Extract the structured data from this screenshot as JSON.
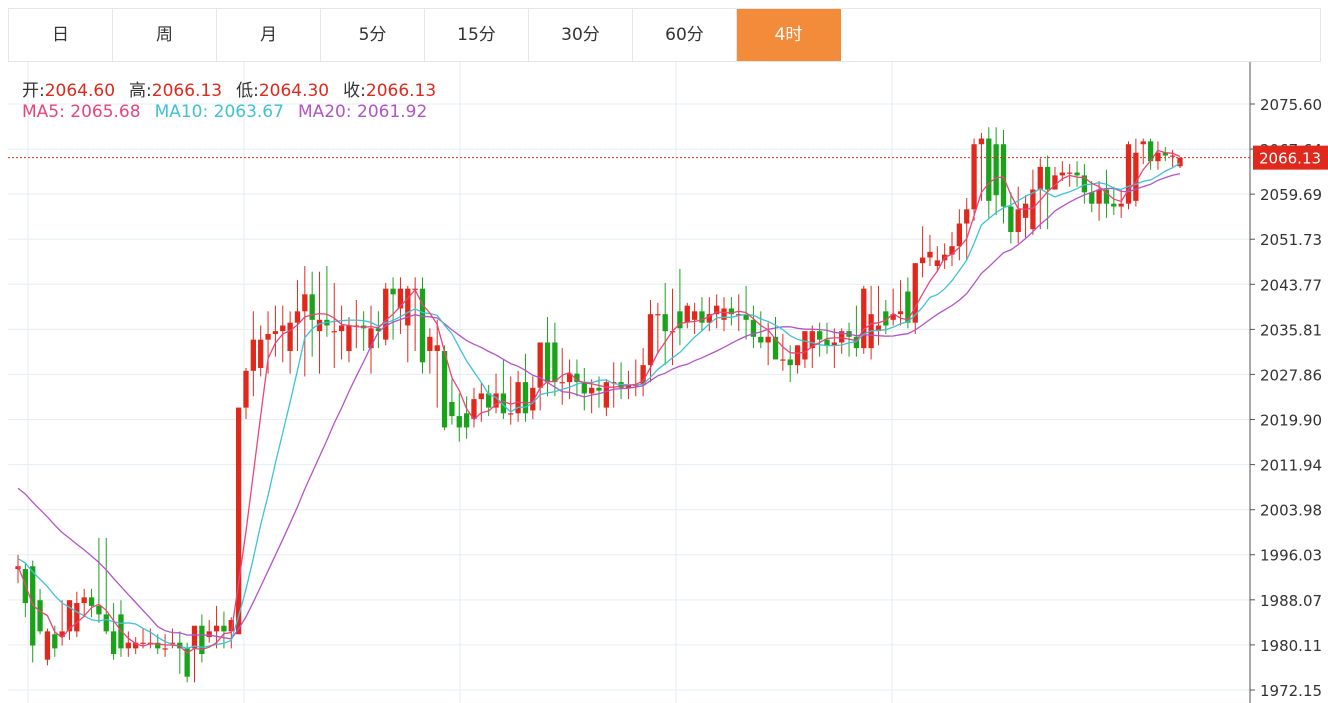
{
  "tabs": [
    {
      "label": "日",
      "active": false
    },
    {
      "label": "周",
      "active": false
    },
    {
      "label": "月",
      "active": false
    },
    {
      "label": "5分",
      "active": false
    },
    {
      "label": "15分",
      "active": false
    },
    {
      "label": "30分",
      "active": false
    },
    {
      "label": "60分",
      "active": false
    },
    {
      "label": "4时",
      "active": true
    }
  ],
  "ohlc_info": {
    "open_label": "开:",
    "open": "2064.60",
    "high_label": "高:",
    "high": "2066.13",
    "low_label": "低:",
    "low": "2064.30",
    "close_label": "收:",
    "close": "2066.13"
  },
  "ma_info": {
    "ma5_label": "MA5:",
    "ma5": "2065.68",
    "ma10_label": "MA10:",
    "ma10": "2063.67",
    "ma20_label": "MA20:",
    "ma20": "2061.92"
  },
  "colors": {
    "up": "#e0291c",
    "down": "#1aa31a",
    "ma5": "#e8457c",
    "ma10": "#3ec2d6",
    "ma20": "#b453c8",
    "active_tab": "#f28c3a",
    "grid": "#e3edf3"
  },
  "chart_data": {
    "type": "candlestick",
    "yticks": [
      "2075.60",
      "2067.64",
      "2059.69",
      "2051.73",
      "2043.77",
      "2035.81",
      "2027.86",
      "2019.90",
      "2011.94",
      "2003.98",
      "1996.03",
      "1988.07",
      "1980.11",
      "1972.15"
    ],
    "ylim": [
      1971,
      2081
    ],
    "last_price": "2066.13",
    "candles": [
      [
        1993.5,
        1996.0,
        1991.0,
        1994.0
      ],
      [
        1993.5,
        1994.5,
        1985.0,
        1987.5
      ],
      [
        1994.0,
        1995.0,
        1977.0,
        1980.0
      ],
      [
        1988.0,
        1990.0,
        1982.0,
        1982.5
      ],
      [
        1977.5,
        1983.0,
        1976.5,
        1982.5
      ],
      [
        1982.0,
        1983.5,
        1978.0,
        1979.5
      ],
      [
        1981.5,
        1988.0,
        1980.0,
        1982.5
      ],
      [
        1982.5,
        1988.0,
        1981.0,
        1988.0
      ],
      [
        1982.5,
        1989.5,
        1981.5,
        1987.5
      ],
      [
        1987.5,
        1990.0,
        1985.0,
        1988.5
      ],
      [
        1988.5,
        1990.0,
        1985.0,
        1987.0
      ],
      [
        1987.0,
        1999.0,
        1984.0,
        1985.5
      ],
      [
        1985.5,
        1999.0,
        1982.0,
        1982.5
      ],
      [
        1982.5,
        1987.5,
        1977.5,
        1978.5
      ],
      [
        1985.5,
        1988.0,
        1978.0,
        1979.5
      ],
      [
        1979.5,
        1982.5,
        1978.0,
        1980.5
      ],
      [
        1979.5,
        1981.5,
        1978.5,
        1980.5
      ],
      [
        1980.5,
        1983.0,
        1979.5,
        1980.5
      ],
      [
        1980.5,
        1983.0,
        1979.5,
        1980.5
      ],
      [
        1980.5,
        1982.0,
        1978.5,
        1979.5
      ],
      [
        1979.5,
        1982.0,
        1978.0,
        1979.5
      ],
      [
        1980.5,
        1983.0,
        1979.5,
        1980.5
      ],
      [
        1980.5,
        1982.5,
        1975.0,
        1979.5
      ],
      [
        1979.5,
        1980.5,
        1973.5,
        1974.5
      ],
      [
        1979.5,
        1982.5,
        1973.5,
        1983.5
      ],
      [
        1983.5,
        1985.5,
        1977.0,
        1978.5
      ],
      [
        1981.5,
        1984.5,
        1980.5,
        1982.5
      ],
      [
        1982.5,
        1987.0,
        1979.5,
        1983.5
      ],
      [
        1983.5,
        1986.0,
        1979.5,
        1982.5
      ],
      [
        1982.5,
        1985.0,
        1979.5,
        1984.5
      ],
      [
        1982.0,
        2022.0,
        1982.0,
        2022.0
      ],
      [
        2022.0,
        2029.0,
        2020.0,
        2028.5
      ],
      [
        2028.5,
        2039.0,
        2024.0,
        2034.0
      ],
      [
        2029.0,
        2036.5,
        2027.5,
        2034.0
      ],
      [
        2034.0,
        2039.0,
        2028.0,
        2035.0
      ],
      [
        2035.0,
        2040.0,
        2031.0,
        2035.5
      ],
      [
        2035.5,
        2040.0,
        2030.0,
        2036.5
      ],
      [
        2032.0,
        2039.0,
        2028.0,
        2037.0
      ],
      [
        2037.0,
        2044.5,
        2032.0,
        2039.0
      ],
      [
        2039.0,
        2047.0,
        2027.5,
        2042.0
      ],
      [
        2042.0,
        2046.0,
        2031.0,
        2037.5
      ],
      [
        2035.5,
        2046.0,
        2028.0,
        2037.5
      ],
      [
        2037.5,
        2047.0,
        2034.5,
        2036.5
      ],
      [
        2035.5,
        2044.0,
        2029.0,
        2035.5
      ],
      [
        2035.5,
        2040.0,
        2030.5,
        2036.5
      ],
      [
        2032.0,
        2038.0,
        2030.0,
        2036.5
      ],
      [
        2036.5,
        2041.0,
        2032.5,
        2036.5
      ],
      [
        2036.5,
        2039.0,
        2032.0,
        2036.0
      ],
      [
        2032.5,
        2040.0,
        2028.0,
        2036.0
      ],
      [
        2036.0,
        2039.0,
        2032.5,
        2035.5
      ],
      [
        2034.0,
        2044.0,
        2033.0,
        2043.0
      ],
      [
        2043.0,
        2045.0,
        2034.0,
        2042.0
      ],
      [
        2039.5,
        2045.0,
        2035.0,
        2043.0
      ],
      [
        2036.5,
        2043.5,
        2030.0,
        2043.0
      ],
      [
        2043.0,
        2045.0,
        2032.0,
        2043.0
      ],
      [
        2043.0,
        2045.0,
        2028.0,
        2030.0
      ],
      [
        2032.0,
        2036.0,
        2028.0,
        2034.5
      ],
      [
        2032.0,
        2037.5,
        2022.0,
        2033.0
      ],
      [
        2032.0,
        2033.0,
        2018.0,
        2018.5
      ],
      [
        2023.0,
        2027.0,
        2019.0,
        2020.5
      ],
      [
        2020.5,
        2024.5,
        2016.0,
        2018.5
      ],
      [
        2021.0,
        2024.0,
        2016.5,
        2018.5
      ],
      [
        2020.0,
        2025.5,
        2018.5,
        2023.5
      ],
      [
        2023.5,
        2026.5,
        2019.5,
        2024.5
      ],
      [
        2024.5,
        2026.0,
        2020.5,
        2022.0
      ],
      [
        2022.0,
        2028.0,
        2021.0,
        2024.5
      ],
      [
        2024.5,
        2030.5,
        2020.0,
        2021.0
      ],
      [
        2021.0,
        2027.5,
        2019.0,
        2021.0
      ],
      [
        2021.0,
        2028.5,
        2019.5,
        2026.5
      ],
      [
        2026.5,
        2031.5,
        2019.5,
        2021.0
      ],
      [
        2021.5,
        2027.5,
        2020.0,
        2025.5
      ],
      [
        2025.5,
        2033.0,
        2021.5,
        2033.5
      ],
      [
        2033.5,
        2038.0,
        2024.0,
        2026.5
      ],
      [
        2033.5,
        2037.0,
        2024.0,
        2026.5
      ],
      [
        2026.5,
        2032.5,
        2022.5,
        2026.5
      ],
      [
        2026.5,
        2030.5,
        2023.5,
        2028.0
      ],
      [
        2028.0,
        2030.5,
        2024.0,
        2026.5
      ],
      [
        2026.5,
        2029.0,
        2021.5,
        2024.5
      ],
      [
        2024.5,
        2027.0,
        2021.0,
        2025.5
      ],
      [
        2025.5,
        2027.5,
        2022.0,
        2025.0
      ],
      [
        2022.0,
        2027.0,
        2020.5,
        2026.5
      ],
      [
        2026.5,
        2030.0,
        2022.0,
        2026.5
      ],
      [
        2026.5,
        2030.0,
        2023.5,
        2025.5
      ],
      [
        2025.5,
        2028.5,
        2023.5,
        2026.0
      ],
      [
        2026.0,
        2030.5,
        2024.0,
        2026.0
      ],
      [
        2026.0,
        2032.5,
        2024.0,
        2029.5
      ],
      [
        2029.5,
        2041.0,
        2026.5,
        2038.5
      ],
      [
        2038.5,
        2040.5,
        2031.5,
        2038.5
      ],
      [
        2038.5,
        2044.0,
        2029.5,
        2035.5
      ],
      [
        2035.5,
        2043.0,
        2029.5,
        2035.5
      ],
      [
        2039.0,
        2046.5,
        2033.0,
        2036.0
      ],
      [
        2037.0,
        2040.5,
        2036.0,
        2040.0
      ],
      [
        2037.5,
        2040.5,
        2035.0,
        2039.0
      ],
      [
        2039.0,
        2041.5,
        2035.5,
        2037.0
      ],
      [
        2037.0,
        2041.5,
        2035.5,
        2038.5
      ],
      [
        2038.5,
        2042.0,
        2036.0,
        2040.0
      ],
      [
        2037.5,
        2041.5,
        2035.5,
        2039.5
      ],
      [
        2039.5,
        2041.5,
        2036.5,
        2038.5
      ],
      [
        2038.5,
        2042.0,
        2035.5,
        2038.5
      ],
      [
        2038.5,
        2043.5,
        2034.0,
        2037.5
      ],
      [
        2037.5,
        2040.0,
        2032.5,
        2034.5
      ],
      [
        2034.5,
        2039.0,
        2032.5,
        2033.5
      ],
      [
        2033.5,
        2037.0,
        2029.5,
        2034.5
      ],
      [
        2034.5,
        2038.0,
        2031.0,
        2030.5
      ],
      [
        2030.5,
        2035.0,
        2028.5,
        2030.5
      ],
      [
        2030.5,
        2033.0,
        2026.5,
        2029.5
      ],
      [
        2029.5,
        2033.0,
        2028.0,
        2033.0
      ],
      [
        2030.5,
        2035.5,
        2029.0,
        2035.5
      ],
      [
        2032.5,
        2036.5,
        2029.0,
        2035.5
      ],
      [
        2035.5,
        2037.0,
        2031.0,
        2034.0
      ],
      [
        2034.0,
        2037.0,
        2031.5,
        2033.0
      ],
      [
        2033.0,
        2036.0,
        2029.0,
        2033.5
      ],
      [
        2033.5,
        2036.0,
        2031.5,
        2035.5
      ],
      [
        2035.5,
        2037.0,
        2031.0,
        2034.5
      ],
      [
        2034.5,
        2040.0,
        2031.0,
        2032.5
      ],
      [
        2032.5,
        2043.5,
        2031.5,
        2043.0
      ],
      [
        2032.5,
        2043.5,
        2030.5,
        2038.5
      ],
      [
        2035.5,
        2043.5,
        2033.0,
        2036.5
      ],
      [
        2039.0,
        2041.0,
        2035.0,
        2036.5
      ],
      [
        2037.5,
        2043.0,
        2036.5,
        2038.5
      ],
      [
        2038.5,
        2044.5,
        2036.5,
        2039.0
      ],
      [
        2042.5,
        2045.0,
        2036.0,
        2037.0
      ],
      [
        2037.0,
        2047.5,
        2035.0,
        2047.5
      ],
      [
        2047.5,
        2054.0,
        2045.0,
        2048.5
      ],
      [
        2048.5,
        2052.5,
        2047.0,
        2049.5
      ],
      [
        2047.0,
        2050.5,
        2046.0,
        2048.0
      ],
      [
        2048.0,
        2051.0,
        2046.5,
        2049.0
      ],
      [
        2049.0,
        2053.0,
        2047.0,
        2050.5
      ],
      [
        2050.5,
        2057.0,
        2048.0,
        2054.5
      ],
      [
        2054.5,
        2059.0,
        2048.0,
        2057.0
      ],
      [
        2057.0,
        2069.5,
        2055.0,
        2068.5
      ],
      [
        2068.5,
        2070.5,
        2058.5,
        2069.5
      ],
      [
        2069.5,
        2071.5,
        2055.5,
        2058.5
      ],
      [
        2068.5,
        2071.5,
        2056.0,
        2059.5
      ],
      [
        2068.5,
        2071.0,
        2054.5,
        2057.5
      ],
      [
        2057.5,
        2060.0,
        2051.0,
        2053.0
      ],
      [
        2053.0,
        2061.0,
        2051.0,
        2057.0
      ],
      [
        2055.5,
        2059.5,
        2052.0,
        2058.0
      ],
      [
        2053.5,
        2064.0,
        2052.5,
        2060.5
      ],
      [
        2060.5,
        2066.0,
        2053.5,
        2064.5
      ],
      [
        2064.5,
        2066.5,
        2053.5,
        2060.5
      ],
      [
        2060.5,
        2064.5,
        2061.5,
        2063.0
      ],
      [
        2063.0,
        2065.5,
        2062.0,
        2063.5
      ],
      [
        2063.5,
        2065.0,
        2061.0,
        2063.5
      ],
      [
        2063.5,
        2065.5,
        2061.0,
        2063.0
      ],
      [
        2063.0,
        2065.0,
        2058.0,
        2060.0
      ],
      [
        2060.0,
        2062.0,
        2056.5,
        2058.0
      ],
      [
        2058.0,
        2062.0,
        2055.0,
        2060.5
      ],
      [
        2060.5,
        2064.0,
        2055.5,
        2058.0
      ],
      [
        2058.0,
        2061.0,
        2056.0,
        2057.5
      ],
      [
        2057.5,
        2060.5,
        2055.5,
        2058.0
      ],
      [
        2058.0,
        2069.0,
        2057.0,
        2068.5
      ],
      [
        2058.5,
        2069.5,
        2057.5,
        2067.0
      ],
      [
        2068.5,
        2069.5,
        2065.0,
        2069.0
      ],
      [
        2069.0,
        2069.5,
        2064.0,
        2065.5
      ],
      [
        2065.5,
        2069.0,
        2064.0,
        2067.0
      ],
      [
        2067.0,
        2068.0,
        2065.5,
        2066.5
      ],
      [
        2066.5,
        2067.5,
        2064.5,
        2066.5
      ],
      [
        2064.6,
        2066.13,
        2064.3,
        2066.13
      ]
    ]
  }
}
